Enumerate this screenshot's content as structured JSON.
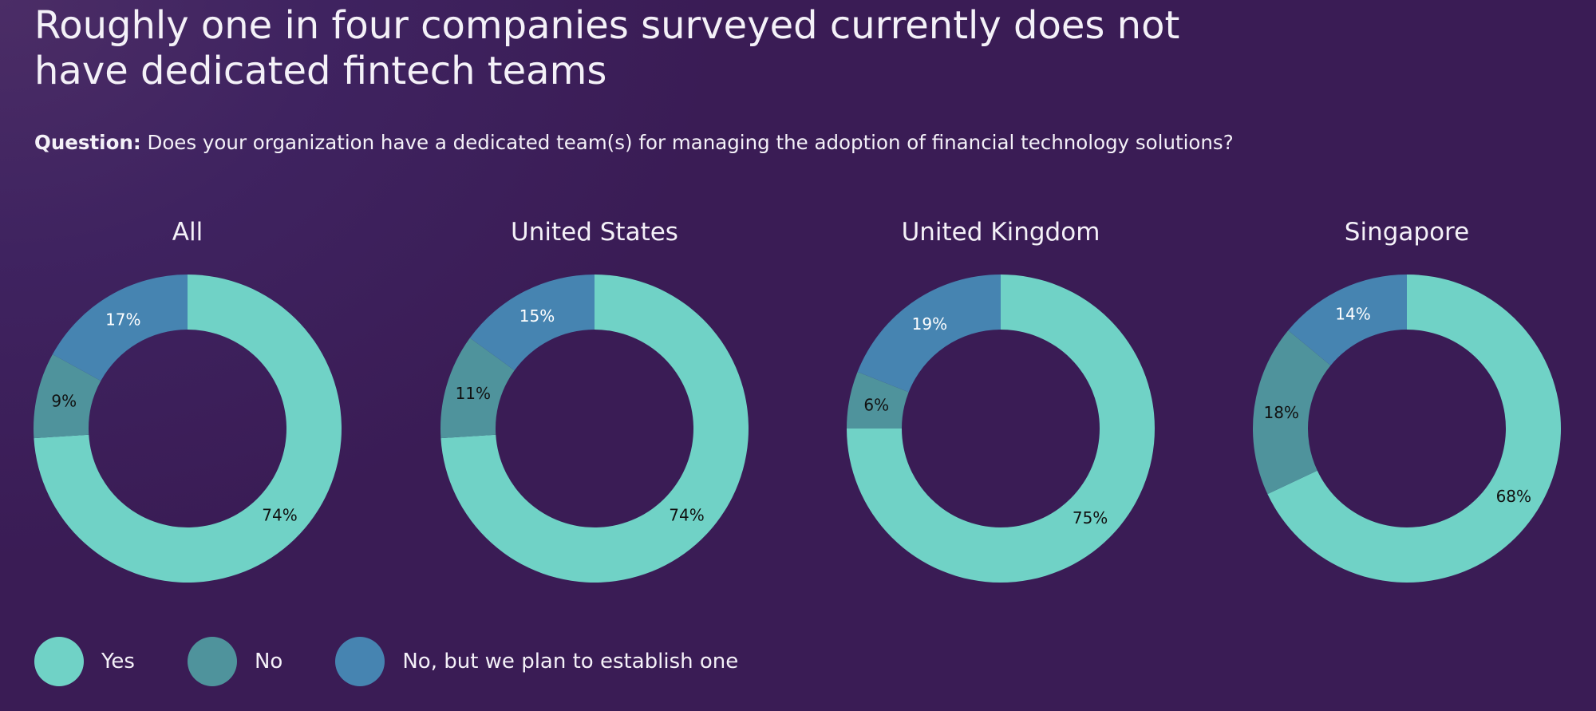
{
  "title": "Roughly one in four companies surveyed currently does not have dedicated fintech teams",
  "question": {
    "label": "Question:",
    "text": "Does your organization have a dedicated team(s) for managing the adoption of financial technology solutions?"
  },
  "legend": {
    "items": [
      {
        "label": "Yes",
        "color": "#70d2c6"
      },
      {
        "label": "No",
        "color": "#4f939c"
      },
      {
        "label": "No, but we plan to establish one",
        "color": "#4684b1"
      }
    ]
  },
  "chart_data": {
    "type": "pie",
    "variant": "donut",
    "series_names": [
      "Yes",
      "No",
      "No, but we plan to establish one"
    ],
    "colors": [
      "#70d2c6",
      "#4f939c",
      "#4684b1"
    ],
    "label_colors": [
      "#111111",
      "#111111",
      "#ffffff"
    ],
    "charts": [
      {
        "title": "All",
        "values": [
          74,
          9,
          17
        ],
        "labels": [
          "74%",
          "9%",
          "17%"
        ]
      },
      {
        "title": "United States",
        "values": [
          74,
          11,
          15
        ],
        "labels": [
          "74%",
          "11%",
          "15%"
        ]
      },
      {
        "title": "United Kingdom",
        "values": [
          75,
          6,
          19
        ],
        "labels": [
          "75%",
          "6%",
          "19%"
        ]
      },
      {
        "title": "Singapore",
        "values": [
          68,
          18,
          14
        ],
        "labels": [
          "68%",
          "18%",
          "14%"
        ]
      }
    ]
  }
}
